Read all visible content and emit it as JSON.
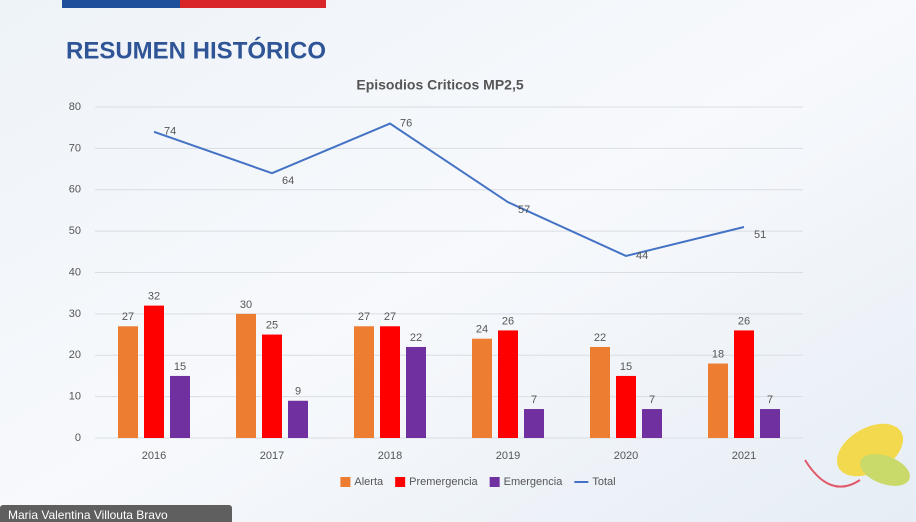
{
  "slide_title": "RESUMEN HISTÓRICO",
  "presenter": "Maria Valentina Villouta Bravo",
  "chart_data": {
    "type": "bar",
    "title": "Episodios Criticos MP2,5",
    "categories": [
      "2016",
      "2017",
      "2018",
      "2019",
      "2020",
      "2021"
    ],
    "series": [
      {
        "name": "Alerta",
        "color": "#ED7D31",
        "values": [
          27,
          30,
          27,
          24,
          22,
          18
        ]
      },
      {
        "name": "Premergencia",
        "color": "#FF0000",
        "values": [
          32,
          25,
          27,
          26,
          15,
          26
        ]
      },
      {
        "name": "Emergencia",
        "color": "#7030A0",
        "values": [
          15,
          9,
          22,
          7,
          7,
          7
        ]
      },
      {
        "name": "Total",
        "type": "line",
        "color": "#4472C4",
        "values": [
          74,
          64,
          76,
          57,
          44,
          51
        ]
      }
    ],
    "ylim": [
      0,
      80
    ],
    "yticks": [
      0,
      10,
      20,
      30,
      40,
      50,
      60,
      70,
      80
    ],
    "grid": true,
    "legend": "bottom"
  }
}
